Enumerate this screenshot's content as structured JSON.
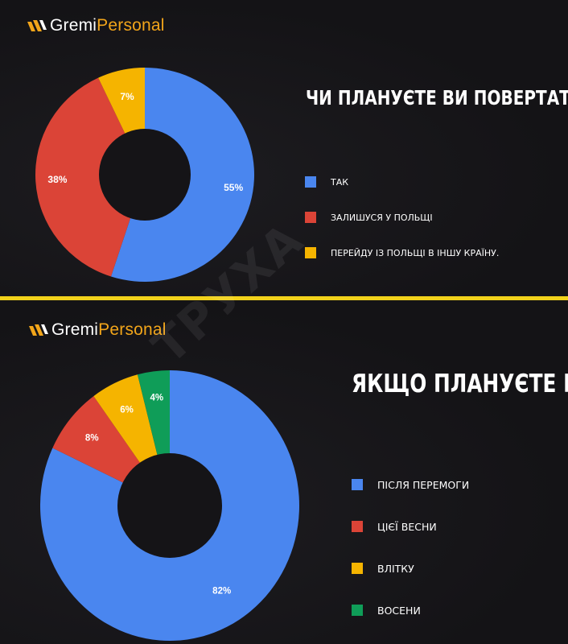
{
  "brand": {
    "part1": "Gremi",
    "part2": "Personal"
  },
  "colors": {
    "blue": "#4a86ef",
    "red": "#db4437",
    "yellow": "#f5b400",
    "green": "#0f9d58",
    "accent": "#f2a51a",
    "divider": "#f2d21b"
  },
  "watermark": "ТРУХА",
  "chart_data": [
    {
      "type": "pie",
      "title": "Чи плануєте ви повертатися в Україну?",
      "categories": [
        "Так",
        "Залишуся у Польщі",
        "Перейду із Польщі в іншу країну."
      ],
      "values": [
        55,
        38,
        7
      ],
      "labels": [
        "55%",
        "38%",
        "7%"
      ],
      "colors": [
        "#4a86ef",
        "#db4437",
        "#f5b400"
      ],
      "legend_position": "right"
    },
    {
      "type": "pie",
      "title": "Якщо плануєте повертатися, то коли?",
      "categories": [
        "Після перемоги",
        "Цієї весни",
        "Влітку",
        "Восени"
      ],
      "values": [
        82,
        8,
        6,
        4
      ],
      "labels": [
        "82%",
        "8%",
        "6%",
        "4%"
      ],
      "colors": [
        "#4a86ef",
        "#db4437",
        "#f5b400",
        "#0f9d58"
      ],
      "legend_position": "right"
    }
  ]
}
